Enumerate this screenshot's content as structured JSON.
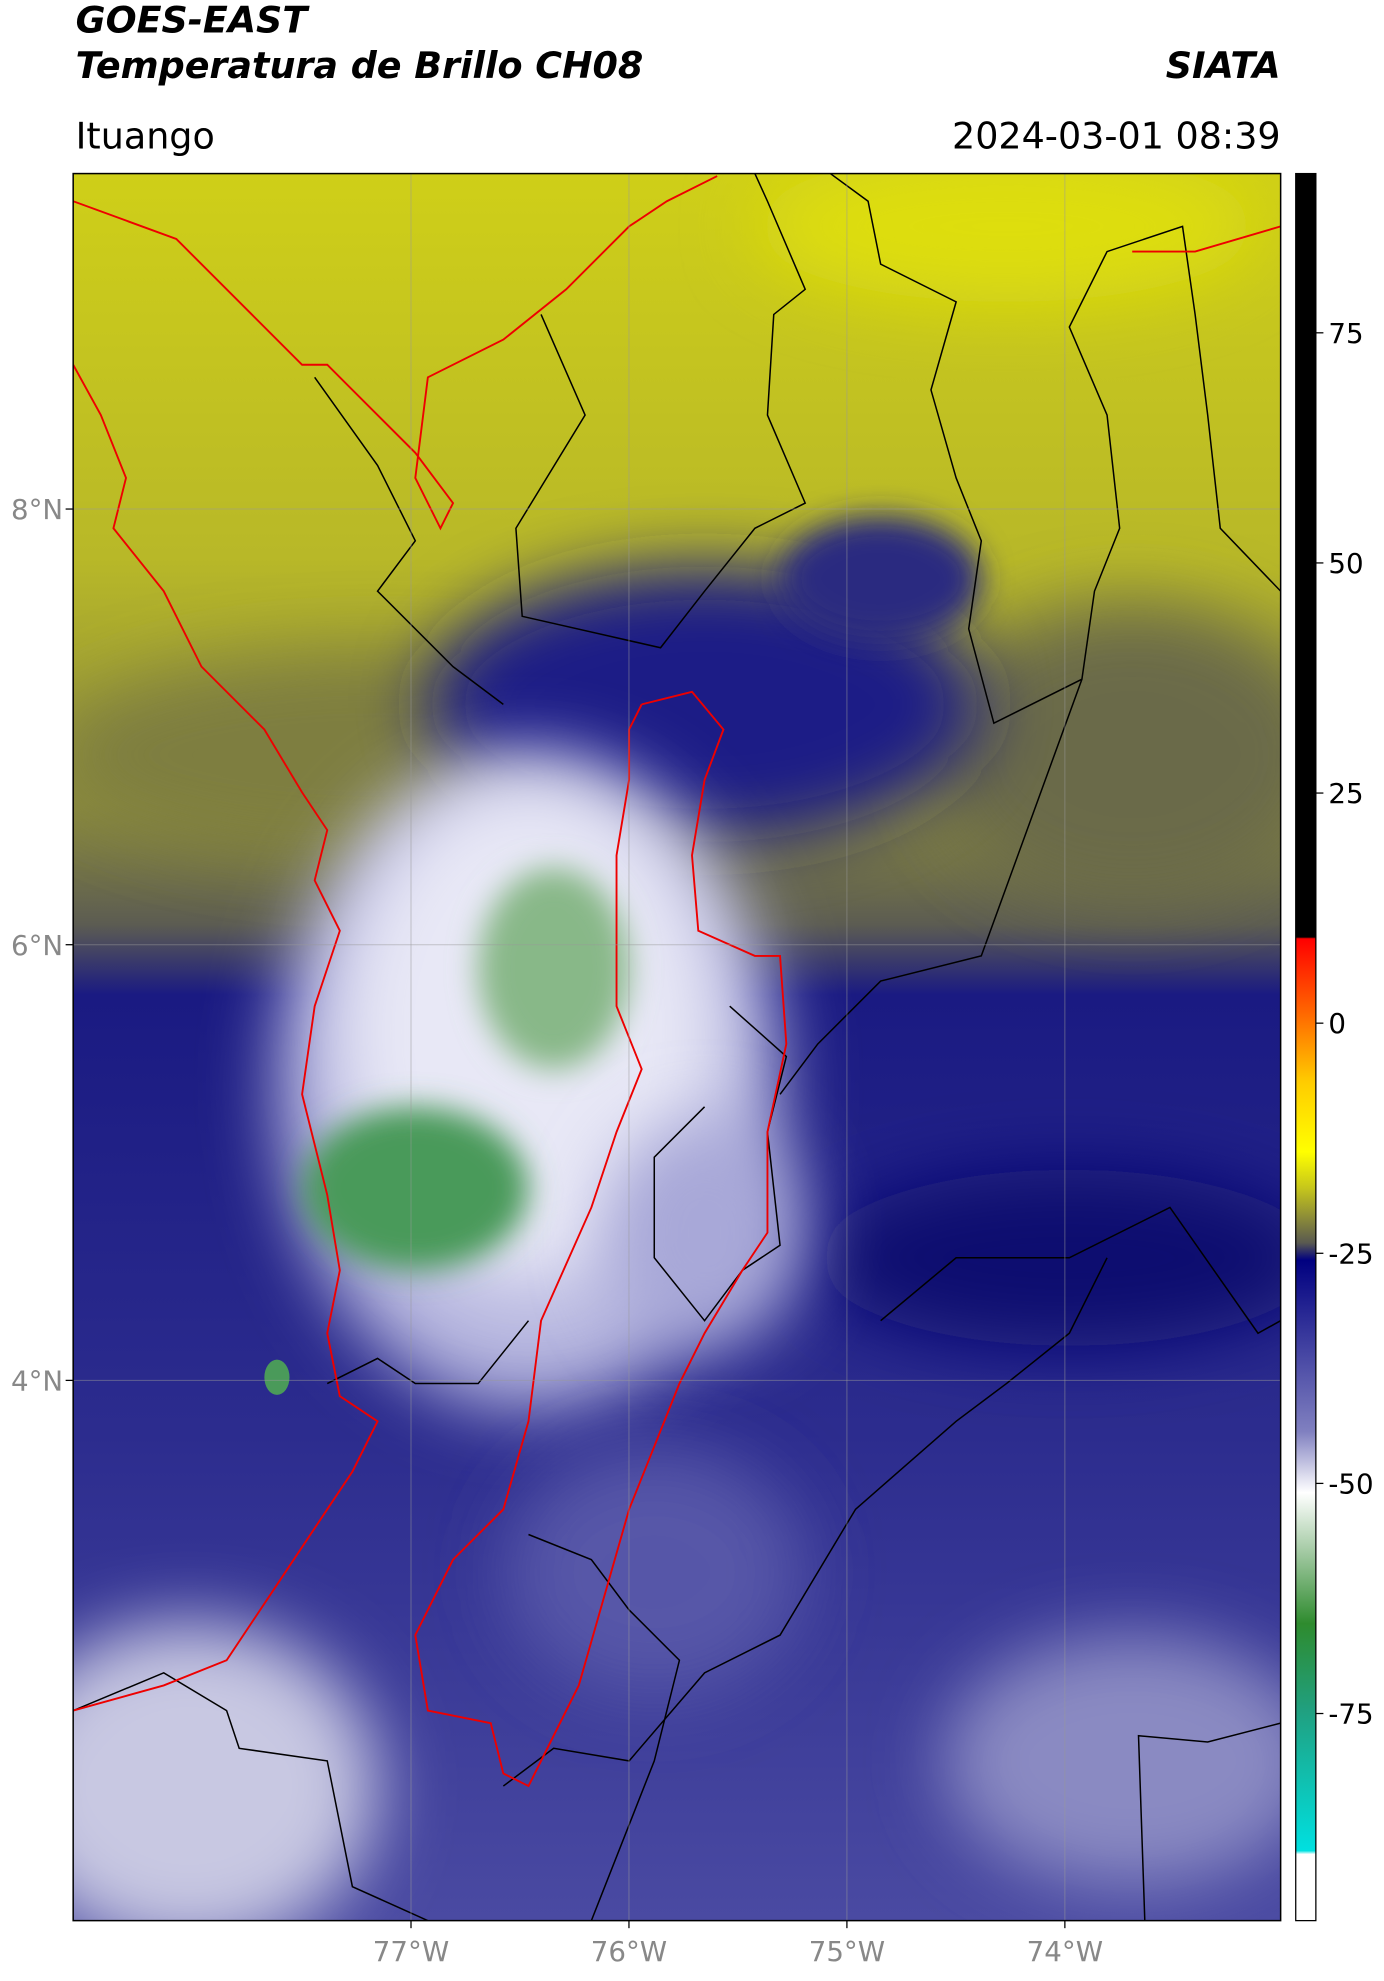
{
  "header": {
    "title": "GOES-EAST",
    "subtitle": "Temperatura de Brillo CH08",
    "brand": "SIATA",
    "region": "Ituango",
    "timestamp": "2024-03-01 08:39"
  },
  "map": {
    "type": "map",
    "xlim": [
      -78.55,
      -73.01
    ],
    "ylim": [
      1.52,
      9.54
    ],
    "xticks": [
      {
        "value": -77,
        "label": "77°W"
      },
      {
        "value": -76,
        "label": "76°W"
      },
      {
        "value": -75,
        "label": "75°W"
      },
      {
        "value": -74,
        "label": "74°W"
      }
    ],
    "yticks": [
      {
        "value": 8,
        "label": "8°N"
      },
      {
        "value": 6,
        "label": "6°N"
      },
      {
        "value": 4,
        "label": "4°N"
      }
    ],
    "grid": true
  },
  "colorbar": {
    "lim": [
      -97.5,
      92.3
    ],
    "ticks": [
      75,
      50,
      25,
      0,
      -25,
      -50,
      -75
    ]
  }
}
